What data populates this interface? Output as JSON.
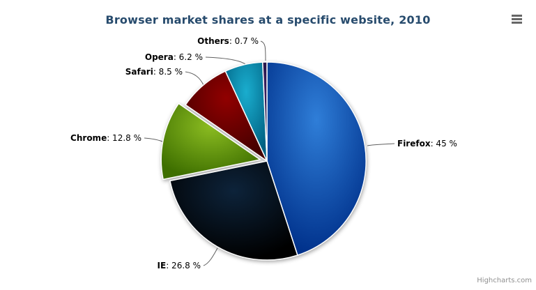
{
  "title": "Browser market shares at a specific website, 2010",
  "credits": {
    "label": "Highcharts.com"
  },
  "chart_data": {
    "type": "pie",
    "title": "Browser market shares at a specific website, 2010",
    "legend_position": "none",
    "start_angle_deg": 0,
    "direction": "clockwise",
    "slices": [
      {
        "name": "Firefox",
        "value": 45,
        "label": "Firefox: 45 %",
        "suffix": ": 45 %",
        "color": "#2f7ed8",
        "sliced": false
      },
      {
        "name": "IE",
        "value": 26.8,
        "label": "IE: 26.8 %",
        "suffix": ": 26.8 %",
        "color": "#0d233a",
        "sliced": false
      },
      {
        "name": "Chrome",
        "value": 12.8,
        "label": "Chrome: 12.8 %",
        "suffix": ": 12.8 %",
        "color": "#8bbc21",
        "sliced": true
      },
      {
        "name": "Safari",
        "value": 8.5,
        "label": "Safari: 8.5 %",
        "suffix": ": 8.5 %",
        "color": "#910000",
        "sliced": false
      },
      {
        "name": "Opera",
        "value": 6.2,
        "label": "Opera: 6.2 %",
        "suffix": ": 6.2 %",
        "color": "#1aadce",
        "sliced": false
      },
      {
        "name": "Others",
        "value": 0.7,
        "label": "Others: 0.7 %",
        "suffix": ": 0.7 %",
        "color": "#492970",
        "sliced": false
      }
    ]
  }
}
